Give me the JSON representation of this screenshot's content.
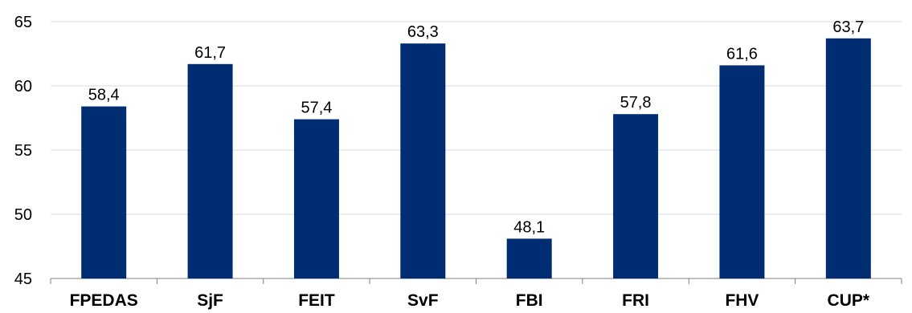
{
  "chart_data": {
    "type": "bar",
    "title": "",
    "xlabel": "",
    "ylabel": "",
    "categories": [
      "FPEDAS",
      "SjF",
      "FEIT",
      "SvF",
      "FBI",
      "FRI",
      "FHV",
      "CUP*"
    ],
    "values": [
      58.4,
      61.7,
      57.4,
      63.3,
      48.1,
      57.8,
      61.6,
      63.7
    ],
    "value_labels": [
      "58,4",
      "61,7",
      "57,4",
      "63,3",
      "48,1",
      "57,8",
      "61,6",
      "63,7"
    ],
    "ylim": [
      45,
      65
    ],
    "yticks": [
      45,
      50,
      55,
      60,
      65
    ],
    "grid": "horizontal",
    "legend": "none",
    "bar_color": "#002D72"
  }
}
